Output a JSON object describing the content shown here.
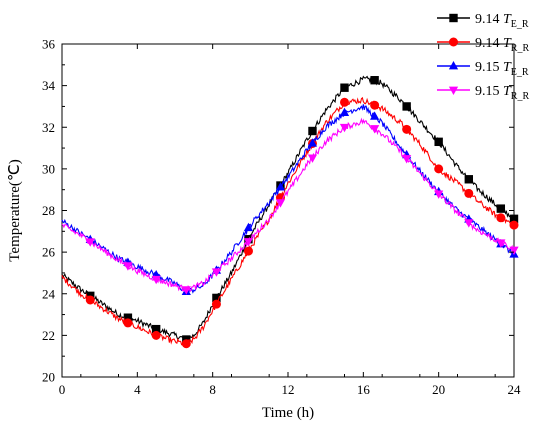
{
  "chart_data": {
    "type": "line",
    "xlabel": "Time (h)",
    "ylabel": "Temperature(℃)",
    "xlim": [
      0,
      24
    ],
    "ylim": [
      20,
      36
    ],
    "xticks": [
      "0",
      "4",
      "8",
      "12",
      "16",
      "20",
      "24"
    ],
    "yticks": [
      "20",
      "22",
      "24",
      "26",
      "28",
      "30",
      "32",
      "34",
      "36"
    ],
    "grid": false,
    "legend_position": "top-right",
    "series": [
      {
        "name": "9.14 T_E_R",
        "legend_prefix": "9.14 ",
        "legend_var": "T",
        "legend_sub": "E_R",
        "color": "#000000",
        "marker": "square",
        "x": [
          0,
          1,
          2,
          3,
          4,
          5,
          6,
          6.6,
          7,
          7.5,
          8,
          9,
          10,
          11,
          12,
          13,
          14,
          15,
          16,
          16.5,
          17,
          18,
          19,
          20,
          21,
          22,
          23,
          24
        ],
        "values": [
          24.9,
          24.2,
          23.6,
          23.0,
          22.7,
          22.3,
          22.0,
          21.8,
          22.0,
          22.6,
          23.5,
          25.0,
          26.8,
          28.3,
          29.8,
          31.4,
          32.8,
          33.9,
          34.3,
          34.3,
          34.1,
          33.3,
          32.3,
          31.3,
          30.1,
          29.1,
          28.3,
          27.6
        ]
      },
      {
        "name": "9.14 T_R_R",
        "legend_prefix": "9.14 ",
        "legend_var": "T",
        "legend_sub": "R_R",
        "color": "#ff0000",
        "marker": "circle",
        "x": [
          0,
          1,
          2,
          3,
          4,
          5,
          6,
          6.6,
          7,
          7.5,
          8,
          9,
          10,
          11,
          12,
          13,
          14,
          15,
          16,
          17,
          18,
          19,
          20,
          21,
          22,
          23,
          24
        ],
        "values": [
          24.8,
          24.0,
          23.4,
          22.8,
          22.4,
          22.0,
          21.7,
          21.6,
          21.8,
          22.4,
          23.2,
          24.7,
          26.2,
          27.6,
          29.3,
          30.8,
          32.2,
          33.2,
          33.3,
          32.9,
          32.2,
          31.2,
          30.0,
          29.3,
          28.5,
          27.8,
          27.3
        ]
      },
      {
        "name": "9.15 T_E_R",
        "legend_prefix": "9.15 ",
        "legend_var": "T",
        "legend_sub": "E_R",
        "color": "#0000ff",
        "marker": "triangle-up",
        "x": [
          0,
          1,
          2,
          3,
          4,
          5,
          6,
          6.6,
          7,
          7.5,
          8,
          9,
          10,
          11,
          12,
          13,
          14,
          15,
          16,
          17,
          18,
          19,
          20,
          21,
          22,
          23,
          24
        ],
        "values": [
          27.5,
          26.9,
          26.3,
          25.7,
          25.3,
          24.9,
          24.5,
          24.1,
          24.2,
          24.4,
          24.9,
          26.0,
          27.3,
          28.4,
          29.6,
          30.9,
          32.0,
          32.7,
          33.0,
          32.2,
          31.0,
          29.9,
          28.9,
          28.0,
          27.3,
          26.6,
          25.9
        ]
      },
      {
        "name": "9.15 T_R_R",
        "legend_prefix": "9.15 ",
        "legend_var": "T",
        "legend_sub": "R_R",
        "color": "#ff00ff",
        "marker": "triangle-down",
        "x": [
          0,
          1,
          2,
          3,
          4,
          5,
          6,
          6.6,
          7,
          7.5,
          8,
          9,
          10,
          11,
          12,
          13,
          14,
          15,
          16,
          17,
          18,
          19,
          20,
          21,
          22,
          23,
          24
        ],
        "values": [
          27.3,
          26.8,
          26.2,
          25.6,
          25.1,
          24.7,
          24.4,
          24.2,
          24.3,
          24.5,
          24.9,
          25.7,
          26.6,
          27.6,
          28.9,
          30.2,
          31.3,
          32.0,
          32.3,
          31.7,
          30.8,
          29.8,
          28.8,
          27.9,
          27.1,
          26.6,
          26.1
        ]
      }
    ]
  }
}
